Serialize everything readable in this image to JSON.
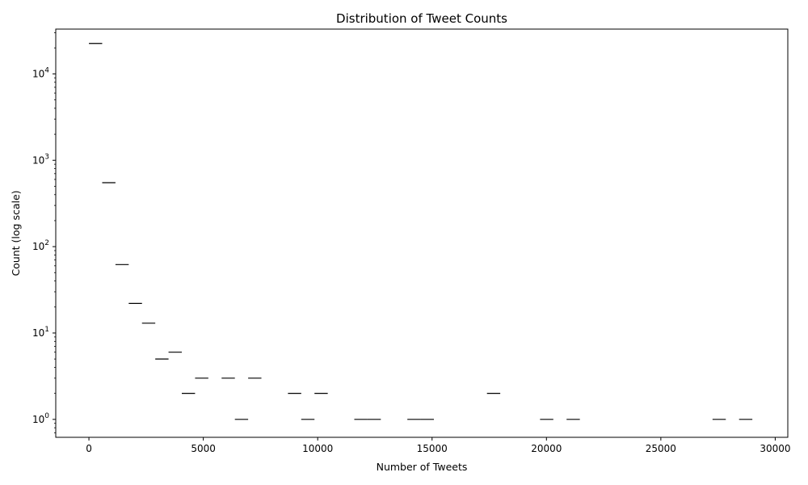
{
  "chart_data": {
    "type": "bar",
    "title": "Distribution of Tweet Counts",
    "xlabel": "Number of Tweets",
    "ylabel": "Count (log scale)",
    "y_scale": "log",
    "xlim": [
      -1450,
      30550
    ],
    "ylim": [
      0.62,
      33000
    ],
    "x_ticks": [
      0,
      5000,
      10000,
      15000,
      20000,
      25000,
      30000
    ],
    "x_tick_labels": [
      "0",
      "5000",
      "10000",
      "15000",
      "20000",
      "25000",
      "30000"
    ],
    "y_ticks": [
      1,
      10,
      100,
      1000,
      10000
    ],
    "bin_width": 580,
    "bars_style": "horizontal step segments at bin tops",
    "bins": [
      {
        "x0": 0,
        "x1": 580,
        "count": 22500
      },
      {
        "x0": 580,
        "x1": 1160,
        "count": 550
      },
      {
        "x0": 1160,
        "x1": 1740,
        "count": 62
      },
      {
        "x0": 1740,
        "x1": 2320,
        "count": 22
      },
      {
        "x0": 2320,
        "x1": 2900,
        "count": 13
      },
      {
        "x0": 2900,
        "x1": 3480,
        "count": 5
      },
      {
        "x0": 3480,
        "x1": 4060,
        "count": 6
      },
      {
        "x0": 4060,
        "x1": 4640,
        "count": 2
      },
      {
        "x0": 4640,
        "x1": 5220,
        "count": 3
      },
      {
        "x0": 5800,
        "x1": 6380,
        "count": 3
      },
      {
        "x0": 6380,
        "x1": 6960,
        "count": 1
      },
      {
        "x0": 6960,
        "x1": 7540,
        "count": 3
      },
      {
        "x0": 8700,
        "x1": 9280,
        "count": 2
      },
      {
        "x0": 9280,
        "x1": 9860,
        "count": 1
      },
      {
        "x0": 9860,
        "x1": 10440,
        "count": 2
      },
      {
        "x0": 11600,
        "x1": 12180,
        "count": 1
      },
      {
        "x0": 12180,
        "x1": 12760,
        "count": 1
      },
      {
        "x0": 13920,
        "x1": 14500,
        "count": 1
      },
      {
        "x0": 14500,
        "x1": 15080,
        "count": 1
      },
      {
        "x0": 17400,
        "x1": 17980,
        "count": 2
      },
      {
        "x0": 19720,
        "x1": 20300,
        "count": 1
      },
      {
        "x0": 20880,
        "x1": 21460,
        "count": 1
      },
      {
        "x0": 27260,
        "x1": 27840,
        "count": 1
      },
      {
        "x0": 28420,
        "x1": 29000,
        "count": 1
      }
    ],
    "grid": false,
    "colors": {
      "line": "#000000",
      "axes": "#000000",
      "background": "#ffffff"
    }
  }
}
